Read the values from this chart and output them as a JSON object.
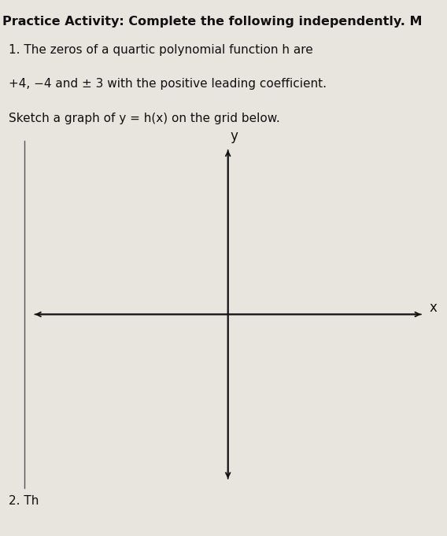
{
  "bg_color": "#e8e4de",
  "header_bg": "#c8c0b8",
  "header_text": "Practice Activity: Complete the following independently. M",
  "header_fontsize": 11.5,
  "body_text_line1": "1. The zeros of a quartic polynomial function h are",
  "body_text_line2": "+4, −4 and ± 3 with the positive leading coefficient.",
  "body_text_line3": "Sketch a graph of y = h(x) on the grid below.",
  "body_fontsize": 11,
  "axis_color": "#111111",
  "axis_label_x": "x",
  "axis_label_y": "y",
  "axis_label_fontsize": 12,
  "text_color": "#111111",
  "border_color": "#555555",
  "grid_area_bg": "#dedad4",
  "bottom_text": "2. Th"
}
